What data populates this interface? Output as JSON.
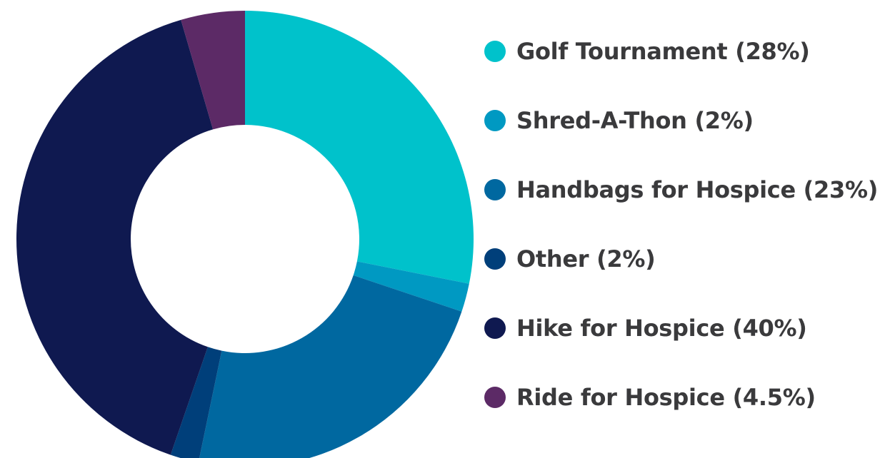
{
  "chart_data": {
    "type": "pie",
    "variant": "donut",
    "title": "",
    "categories": [
      "Golf Tournament (28%)",
      "Shred-A-Thon (2%)",
      "Handbags for Hospice (23%)",
      "Other (2%)",
      "Hike for Hospice (40%)",
      "Ride for Hospice (4.5%)"
    ],
    "values": [
      28,
      2,
      23,
      2,
      40,
      4.5
    ],
    "colors": [
      "#00c2cb",
      "#0099c2",
      "#0068a0",
      "#003f7a",
      "#0f1950",
      "#5c2a66"
    ],
    "legend_position": "right"
  }
}
